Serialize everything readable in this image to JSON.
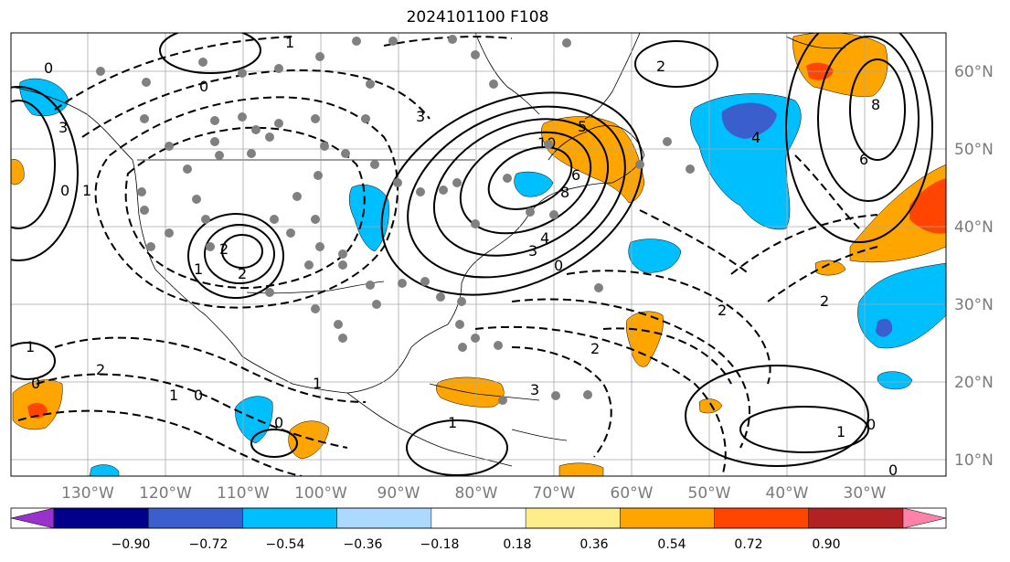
{
  "title": "2024101100 F108",
  "map": {
    "projection": "lat-lon",
    "lon_labels": [
      "130°W",
      "120°W",
      "110°W",
      "100°W",
      "90°W",
      "80°W",
      "70°W",
      "60°W",
      "50°W",
      "40°W",
      "30°W"
    ],
    "lat_labels": [
      "60°N",
      "50°N",
      "40°N",
      "30°N",
      "20°N",
      "10°N"
    ],
    "gridline_color": "#a8a8a8",
    "label_color": "#7a7a7a",
    "contour_labels": [
      "0",
      "1",
      "2",
      "3",
      "4",
      "5",
      "6",
      "8",
      "10",
      "-1",
      "-2"
    ],
    "station_marker_color": "#808080"
  },
  "colorbar": {
    "ticks": [
      "−0.90",
      "−0.72",
      "−0.54",
      "−0.36",
      "−0.18",
      "0.18",
      "0.36",
      "0.54",
      "0.72",
      "0.90"
    ],
    "colors": [
      "#9932cc",
      "#00008b",
      "#3a5fcd",
      "#00bfff",
      "#add8ff",
      "#ffffff",
      "#ffec8b",
      "#ffa500",
      "#ff4500",
      "#b22222",
      "#ff82ab"
    ]
  }
}
